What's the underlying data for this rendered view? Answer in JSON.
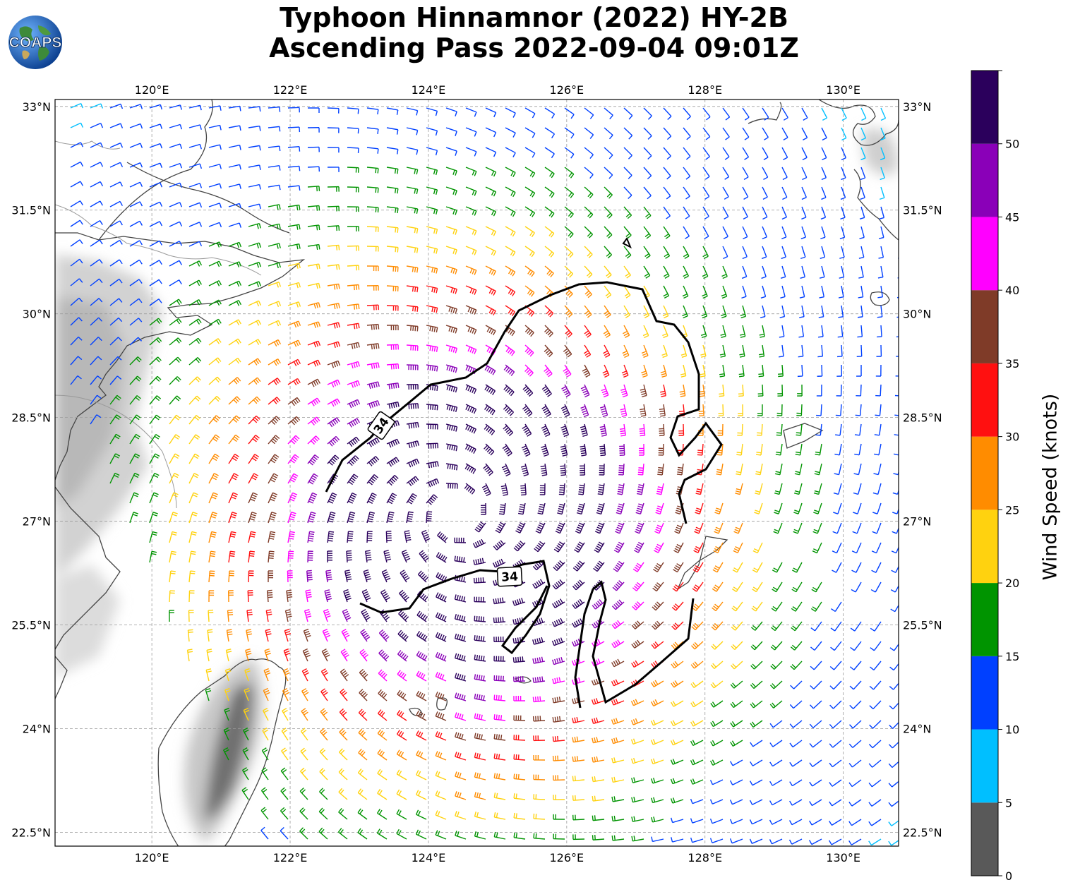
{
  "title": {
    "line1": "Typhoon Hinnamnor (2022) HY-2B",
    "line2": "Ascending Pass 2022-09-04 09:01Z"
  },
  "logo": {
    "text": "COAPS",
    "icon": "globe-icon"
  },
  "map": {
    "lon_range": [
      118.6,
      130.8
    ],
    "lat_range": [
      22.3,
      33.1
    ],
    "lon_ticks": [
      "120°E",
      "122°E",
      "124°E",
      "126°E",
      "128°E",
      "130°E"
    ],
    "lat_ticks": [
      "33°N",
      "31.5°N",
      "30°N",
      "28.5°N",
      "27°N",
      "25.5°N",
      "24°N",
      "22.5°N"
    ],
    "gridlines": true,
    "storm_center": {
      "lon": 124.4,
      "lat": 27.1
    },
    "contour_label": "34",
    "contour_labels": [
      "34",
      "34"
    ],
    "contour_value_knots": 34
  },
  "colorbar": {
    "label": "Wind Speed (knots)",
    "ticks": [
      "0",
      "5",
      "10",
      "15",
      "20",
      "25",
      "30",
      "35",
      "40",
      "45",
      "50"
    ],
    "bins": [
      {
        "min": 0,
        "max": 5,
        "color": "#595959"
      },
      {
        "min": 5,
        "max": 10,
        "color": "#00bfff"
      },
      {
        "min": 10,
        "max": 15,
        "color": "#0040ff"
      },
      {
        "min": 15,
        "max": 20,
        "color": "#009400"
      },
      {
        "min": 20,
        "max": 25,
        "color": "#ffd20f"
      },
      {
        "min": 25,
        "max": 30,
        "color": "#ff8c00"
      },
      {
        "min": 30,
        "max": 35,
        "color": "#ff1010"
      },
      {
        "min": 35,
        "max": 40,
        "color": "#7f3b28"
      },
      {
        "min": 40,
        "max": 45,
        "color": "#ff00ff"
      },
      {
        "min": 45,
        "max": 50,
        "color": "#8a00b8"
      },
      {
        "min": 50,
        "max": 55,
        "color": "#2b005c"
      }
    ]
  }
}
